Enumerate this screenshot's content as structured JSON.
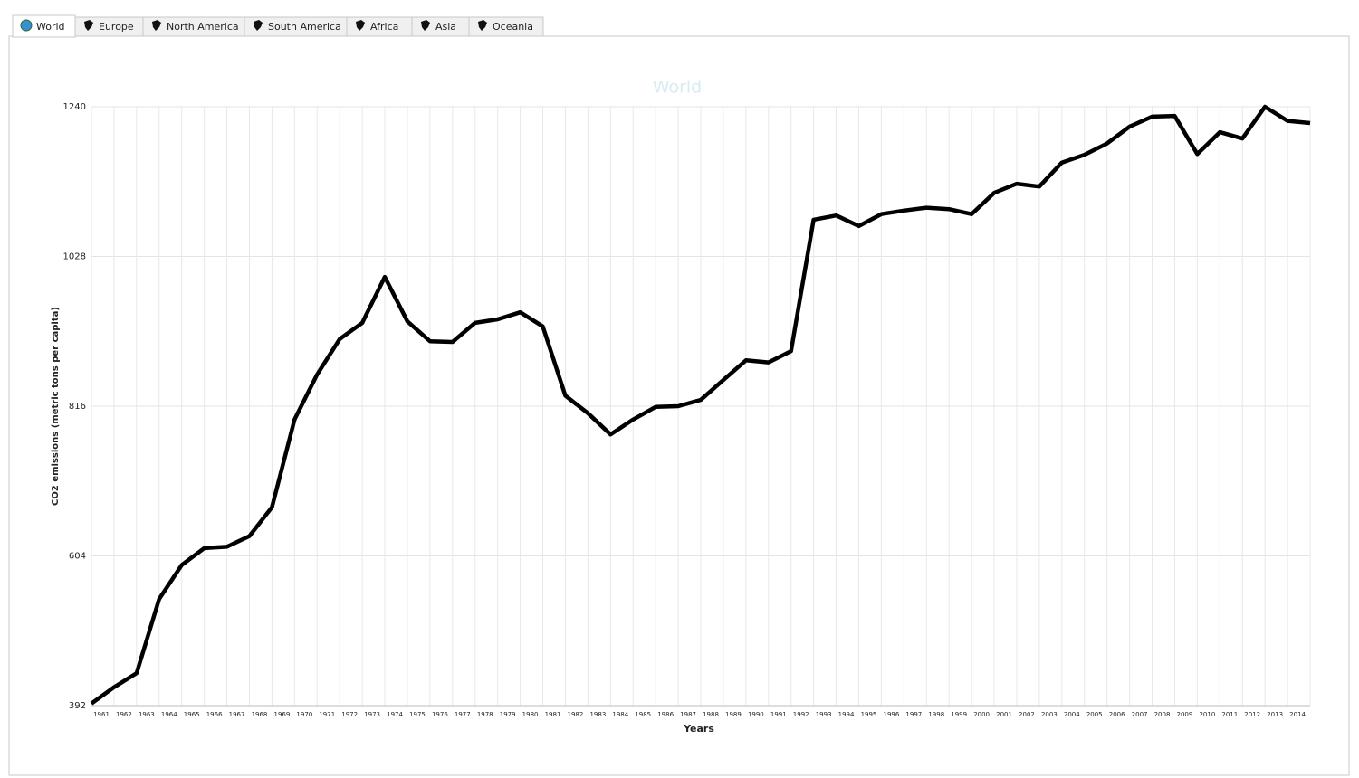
{
  "tabs": [
    {
      "label": "World",
      "active": true
    },
    {
      "label": "Europe",
      "active": false
    },
    {
      "label": "North America",
      "active": false
    },
    {
      "label": "South America",
      "active": false
    },
    {
      "label": "Africa",
      "active": false
    },
    {
      "label": "Asia",
      "active": false
    },
    {
      "label": "Oceania",
      "active": false
    }
  ],
  "chart_data": {
    "type": "line",
    "title": "World",
    "x_label": "Years",
    "y_label": "CO2 emissions (metric tons per capita)",
    "categories": [
      "1961",
      "1962",
      "1963",
      "1964",
      "1965",
      "1966",
      "1967",
      "1968",
      "1969",
      "1970",
      "1971",
      "1972",
      "1973",
      "1974",
      "1975",
      "1976",
      "1977",
      "1978",
      "1979",
      "1980",
      "1981",
      "1982",
      "1983",
      "1984",
      "1985",
      "1986",
      "1987",
      "1988",
      "1989",
      "1990",
      "1991",
      "1992",
      "1993",
      "1994",
      "1995",
      "1996",
      "1997",
      "1998",
      "1999",
      "2000",
      "2001",
      "2002",
      "2003",
      "2004",
      "2005",
      "2006",
      "2007",
      "2008",
      "2009",
      "2010",
      "2011",
      "2012",
      "2013",
      "2014",
      null
    ],
    "series": [
      {
        "name": "World",
        "color": "#000000",
        "values": [
          395,
          418,
          438,
          543,
          591,
          615,
          617,
          632,
          673,
          797,
          861,
          911,
          934,
          999,
          936,
          908,
          907,
          934,
          939,
          949,
          929,
          831,
          806,
          776,
          797,
          815,
          816,
          825,
          853,
          881,
          878,
          894,
          1080,
          1086,
          1071,
          1088,
          1093,
          1097,
          1095,
          1088,
          1118,
          1131,
          1127,
          1161,
          1172,
          1188,
          1212,
          1226,
          1227,
          1173,
          1204,
          1195,
          1240,
          1220,
          1217
        ]
      }
    ],
    "ylim": [
      392,
      1240
    ],
    "yticks": [
      392,
      604,
      816,
      1028,
      1240
    ],
    "grid": true
  }
}
